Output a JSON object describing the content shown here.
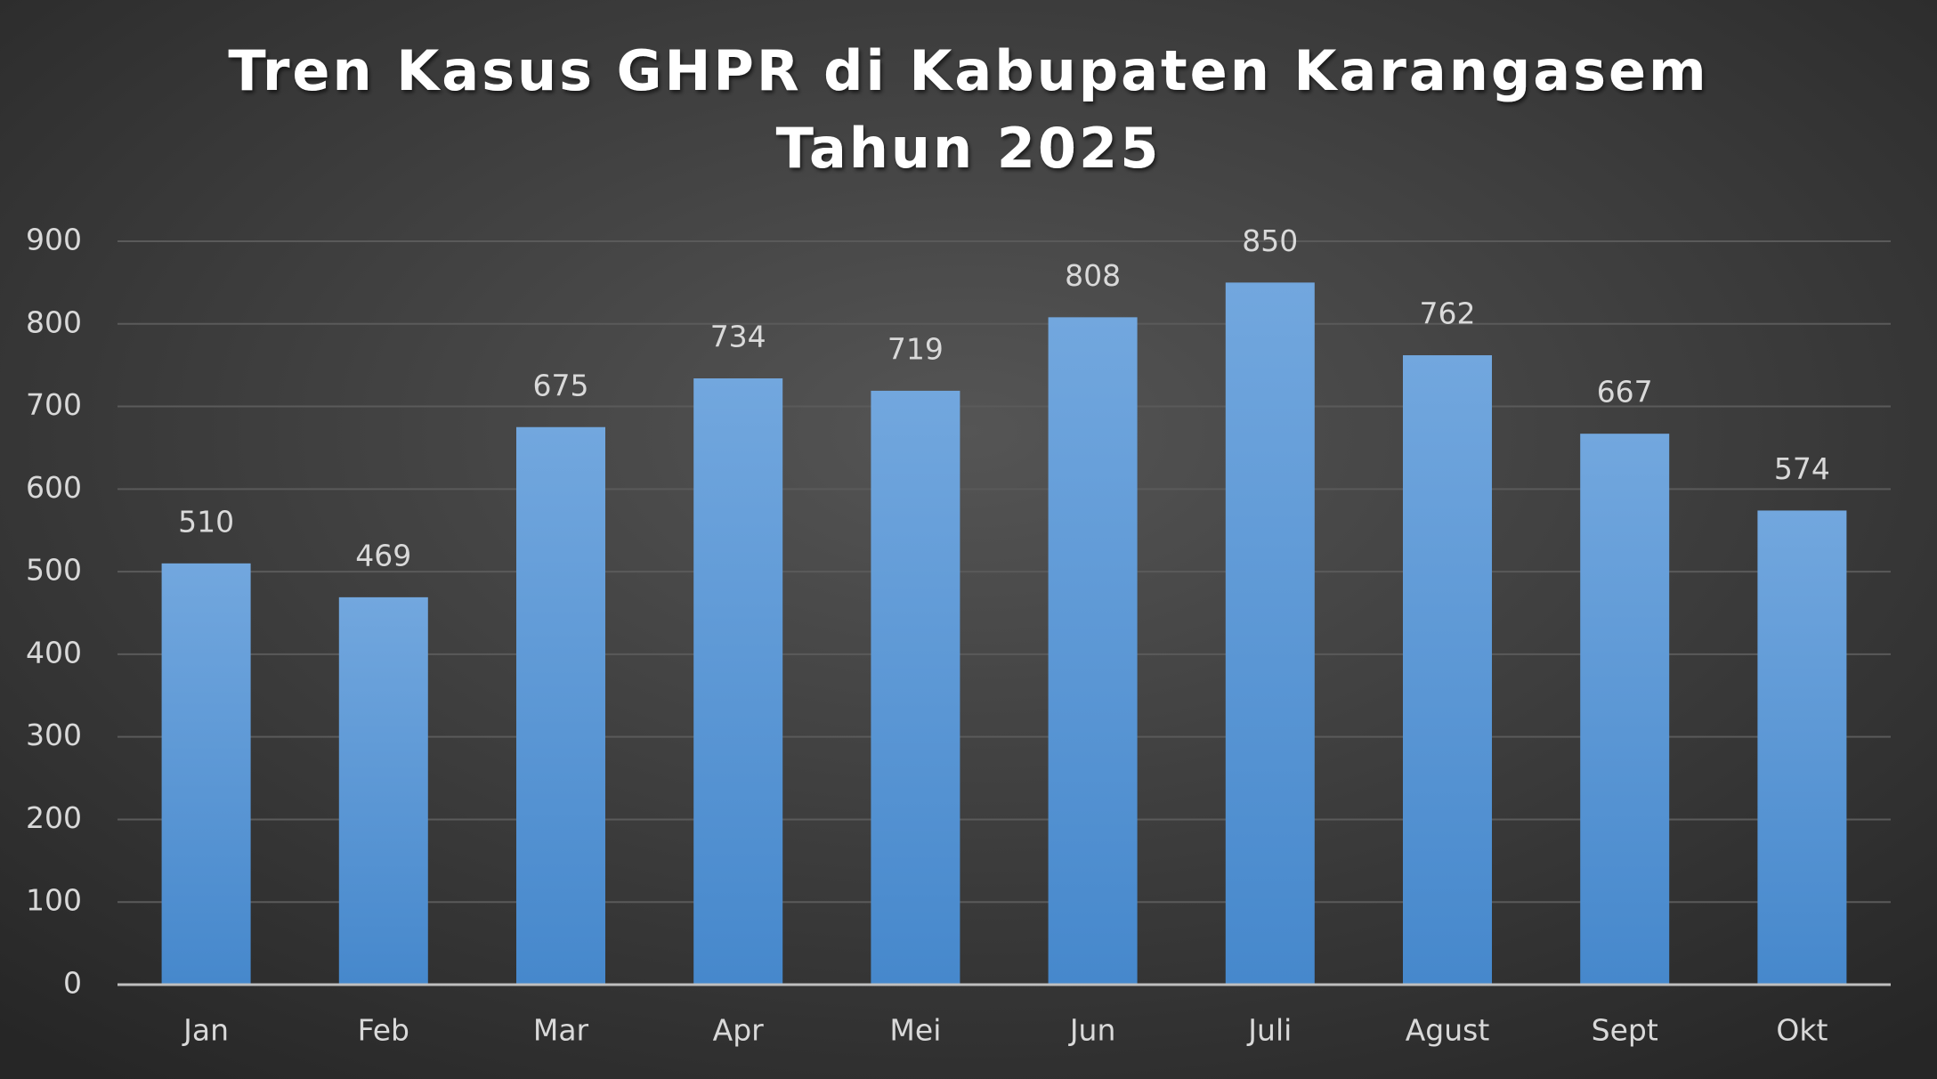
{
  "chart_data": {
    "type": "bar",
    "title": [
      "Tren Kasus GHPR di Kabupaten Karangasem",
      "Tahun 2025"
    ],
    "categories": [
      "Jan",
      "Feb",
      "Mar",
      "Apr",
      "Mei",
      "Jun",
      "Juli",
      "Agust",
      "Sept",
      "Okt"
    ],
    "values": [
      510,
      469,
      675,
      734,
      719,
      808,
      850,
      762,
      667,
      574
    ],
    "color": "#5b9bd5",
    "ylim": [
      0,
      900
    ],
    "yticks": [
      0,
      100,
      200,
      300,
      400,
      500,
      600,
      700,
      800,
      900
    ],
    "grid": true
  }
}
